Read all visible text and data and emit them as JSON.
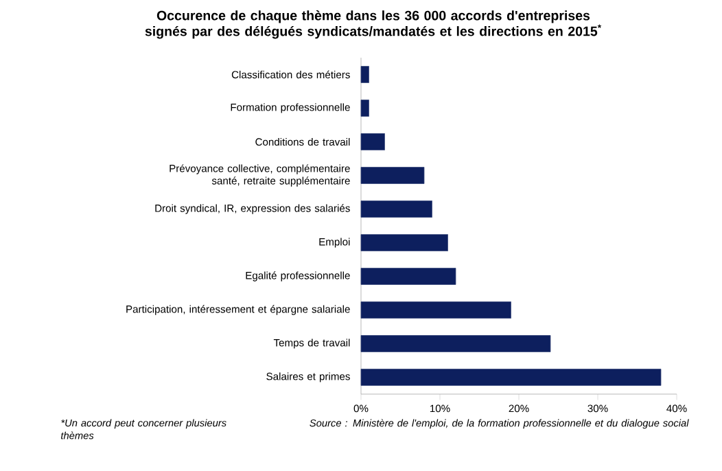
{
  "chart_data": {
    "type": "bar",
    "orientation": "horizontal",
    "title": "Occurence de chaque thème dans les 36 000 accords d'entreprises signés par des délégués syndicats/mandatés et les directions en 2015$^{*}$",
    "categories": [
      "Classification des métiers",
      "Formation professionnelle",
      "Conditions de travail",
      "Prévoyance collective, complémentaire santé, retraite supplémentaire",
      "Droit syndical, IR, expression des salariés",
      "Emploi",
      "Egalité professionnelle",
      "Participation, intéressement et épargne salariale",
      "Temps de travail",
      "Salaires et primes"
    ],
    "values": [
      1,
      1,
      3,
      8,
      9,
      11,
      12,
      19,
      24,
      38
    ],
    "color": "#0d1f5e",
    "xlim": [
      0,
      40
    ],
    "xticks": [
      {
        "value": 0,
        "label": "0%"
      },
      {
        "value": 10,
        "label": "10%"
      },
      {
        "value": 20,
        "label": "20%"
      },
      {
        "value": 30,
        "label": "30%"
      },
      {
        "value": 40,
        "label": "40%"
      }
    ],
    "annotations": [
      "*Un accord peut concerner plusieurs thèmes",
      "Source : Ministère de l'emploi, de la formation professionnelle et du dialogue social"
    ]
  }
}
